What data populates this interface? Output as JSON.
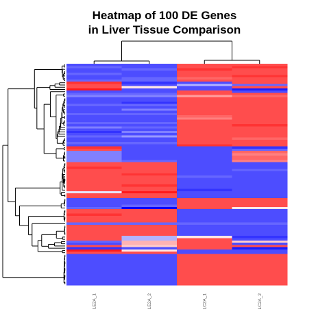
{
  "chart_data": {
    "type": "heatmap",
    "title_line1": "Heatmap of 100 DE Genes",
    "title_line2": "in Liver Tissue Comparison",
    "columns": [
      "LE2A_1",
      "LE2A_2",
      "LC2A_1",
      "LC2A_2"
    ],
    "color_scale": {
      "low": "#0000ff",
      "high": "#ff0000"
    },
    "value_range": [
      -1,
      1
    ],
    "row_dendrogram": true,
    "column_dendrogram": true,
    "column_clusters": [
      [
        "LE2A_1",
        "LE2A_2"
      ],
      [
        "LC2A_1",
        "LC2A_2"
      ]
    ],
    "rows": [
      [
        -0.7,
        -0.7,
        0.7,
        0.7
      ],
      [
        -0.6,
        -0.7,
        0.7,
        0.8
      ],
      [
        -0.7,
        -0.6,
        0.8,
        0.7
      ],
      [
        -0.7,
        -0.7,
        0.7,
        0.7
      ],
      [
        -0.6,
        -0.7,
        0.7,
        0.7
      ],
      [
        -0.7,
        -0.7,
        0.7,
        0.8
      ],
      [
        -0.7,
        -0.6,
        0.6,
        0.7
      ],
      [
        -0.6,
        -0.6,
        0.7,
        0.7
      ],
      [
        0.8,
        -0.8,
        -0.7,
        0.7
      ],
      [
        0.7,
        -0.7,
        -0.3,
        -0.6
      ],
      [
        0.7,
        0.1,
        -0.7,
        0.7
      ],
      [
        0.9,
        -0.7,
        -0.7,
        -0.9
      ],
      [
        -0.7,
        -0.7,
        0.7,
        -0.7
      ],
      [
        -0.6,
        -0.6,
        0.7,
        0.7
      ],
      [
        -0.5,
        -0.5,
        0.4,
        0.6
      ],
      [
        -0.7,
        -0.7,
        0.7,
        0.7
      ],
      [
        -0.7,
        -0.7,
        0.7,
        0.7
      ],
      [
        -0.7,
        -0.8,
        0.7,
        0.7
      ],
      [
        -0.6,
        -0.6,
        0.7,
        0.7
      ],
      [
        -0.7,
        -0.7,
        0.7,
        0.7
      ],
      [
        -0.7,
        -0.5,
        0.7,
        0.7
      ],
      [
        -0.7,
        -0.7,
        0.7,
        0.7
      ],
      [
        -0.6,
        -0.6,
        0.7,
        0.7
      ],
      [
        -0.7,
        -0.7,
        0.6,
        0.7
      ],
      [
        -0.7,
        -0.7,
        0.5,
        0.7
      ],
      [
        -0.7,
        -0.7,
        0.7,
        0.7
      ],
      [
        -0.6,
        -0.6,
        0.7,
        0.7
      ],
      [
        -0.7,
        -0.7,
        0.7,
        0.8
      ],
      [
        -0.5,
        -0.6,
        0.7,
        0.7
      ],
      [
        -0.7,
        -0.7,
        0.7,
        0.7
      ],
      [
        -0.8,
        -0.5,
        0.7,
        0.7
      ],
      [
        -0.7,
        -0.7,
        0.7,
        0.7
      ],
      [
        -0.6,
        -0.4,
        0.7,
        0.7
      ],
      [
        -0.7,
        -0.7,
        0.7,
        0.6
      ],
      [
        -0.7,
        -0.7,
        0.7,
        0.7
      ],
      [
        -0.6,
        -0.6,
        0.7,
        0.7
      ],
      [
        -0.7,
        -0.7,
        0.8,
        0.7
      ],
      [
        0.8,
        -0.7,
        -0.7,
        -0.8
      ],
      [
        0.7,
        -0.7,
        -0.7,
        -0.6
      ],
      [
        -0.5,
        -0.7,
        -0.7,
        0.6
      ],
      [
        -0.5,
        -0.7,
        -0.7,
        0.5
      ],
      [
        -0.5,
        -0.7,
        -0.7,
        0.6
      ],
      [
        -0.5,
        -0.7,
        -0.7,
        0.6
      ],
      [
        -0.5,
        -0.6,
        -0.7,
        0.5
      ],
      [
        0.7,
        0.7,
        -0.7,
        -0.7
      ],
      [
        0.7,
        0.7,
        -0.7,
        -0.7
      ],
      [
        0.8,
        0.7,
        -0.7,
        -0.7
      ],
      [
        0.7,
        0.7,
        -0.7,
        -0.6
      ],
      [
        0.7,
        0.7,
        -0.7,
        -0.7
      ],
      [
        0.7,
        0.8,
        -0.7,
        -0.7
      ],
      [
        0.7,
        0.7,
        -0.6,
        -0.7
      ],
      [
        0.7,
        0.7,
        -0.7,
        -0.7
      ],
      [
        0.7,
        0.7,
        -0.7,
        -0.7
      ],
      [
        0.7,
        0.7,
        -0.7,
        -0.7
      ],
      [
        0.7,
        0.8,
        -0.7,
        -0.7
      ],
      [
        0.7,
        0.7,
        -0.7,
        -0.7
      ],
      [
        0.7,
        0.7,
        -0.8,
        -0.7
      ],
      [
        -0.1,
        0.9,
        -0.7,
        -0.7
      ],
      [
        0.7,
        0.7,
        -0.7,
        -0.7
      ],
      [
        0.7,
        0.7,
        -0.7,
        -0.7
      ],
      [
        -0.7,
        -0.7,
        0.7,
        0.7
      ],
      [
        -0.7,
        -0.7,
        0.7,
        0.7
      ],
      [
        -0.7,
        -0.7,
        0.7,
        0.7
      ],
      [
        -0.7,
        -0.6,
        0.7,
        0.7
      ],
      [
        -0.6,
        -1.0,
        0.7,
        0.1
      ],
      [
        0.7,
        0.7,
        -0.7,
        -0.7
      ],
      [
        0.7,
        0.7,
        -0.7,
        -0.7
      ],
      [
        0.8,
        0.7,
        -0.7,
        -0.7
      ],
      [
        0.7,
        0.7,
        -0.7,
        -0.7
      ],
      [
        0.7,
        0.7,
        -0.7,
        -0.7
      ],
      [
        0.7,
        0.7,
        -0.7,
        -0.7
      ],
      [
        -0.6,
        -0.6,
        -0.6,
        -0.6
      ],
      [
        0.7,
        0.7,
        -0.7,
        -0.7
      ],
      [
        0.7,
        0.7,
        -0.7,
        -0.7
      ],
      [
        0.7,
        0.7,
        -0.7,
        -0.7
      ],
      [
        0.7,
        0.7,
        -0.7,
        -0.7
      ],
      [
        0.7,
        0.7,
        -0.7,
        -0.7
      ],
      [
        0.7,
        -0.3,
        0.1,
        -0.8
      ],
      [
        0.7,
        -0.3,
        0.7,
        -0.7
      ],
      [
        -0.6,
        0.3,
        0.7,
        0.2
      ],
      [
        -0.7,
        0.3,
        0.7,
        -0.7
      ],
      [
        0.7,
        0.2,
        0.7,
        0.7
      ],
      [
        -0.8,
        -0.7,
        0.7,
        -0.9
      ],
      [
        0.9,
        0.1,
        -0.7,
        -0.7
      ],
      [
        0.7,
        0.7,
        -0.7,
        -0.7
      ],
      [
        -0.7,
        -0.7,
        0.7,
        0.7
      ],
      [
        -0.7,
        -0.7,
        0.7,
        0.7
      ],
      [
        -0.7,
        -0.7,
        0.7,
        0.7
      ],
      [
        -0.7,
        -0.7,
        0.7,
        0.7
      ],
      [
        -0.7,
        -0.7,
        0.7,
        0.7
      ],
      [
        -0.7,
        -0.7,
        0.7,
        0.7
      ],
      [
        -0.7,
        -0.7,
        0.7,
        0.7
      ],
      [
        -0.7,
        -0.7,
        0.7,
        0.7
      ],
      [
        -0.7,
        -0.7,
        0.7,
        0.7
      ],
      [
        -0.7,
        -0.7,
        0.7,
        0.7
      ],
      [
        -0.7,
        -0.7,
        0.7,
        0.7
      ],
      [
        -0.7,
        -0.7,
        0.7,
        0.7
      ],
      [
        -0.7,
        -0.7,
        0.7,
        0.7
      ],
      [
        -0.7,
        -0.7,
        0.7,
        0.7
      ]
    ]
  }
}
